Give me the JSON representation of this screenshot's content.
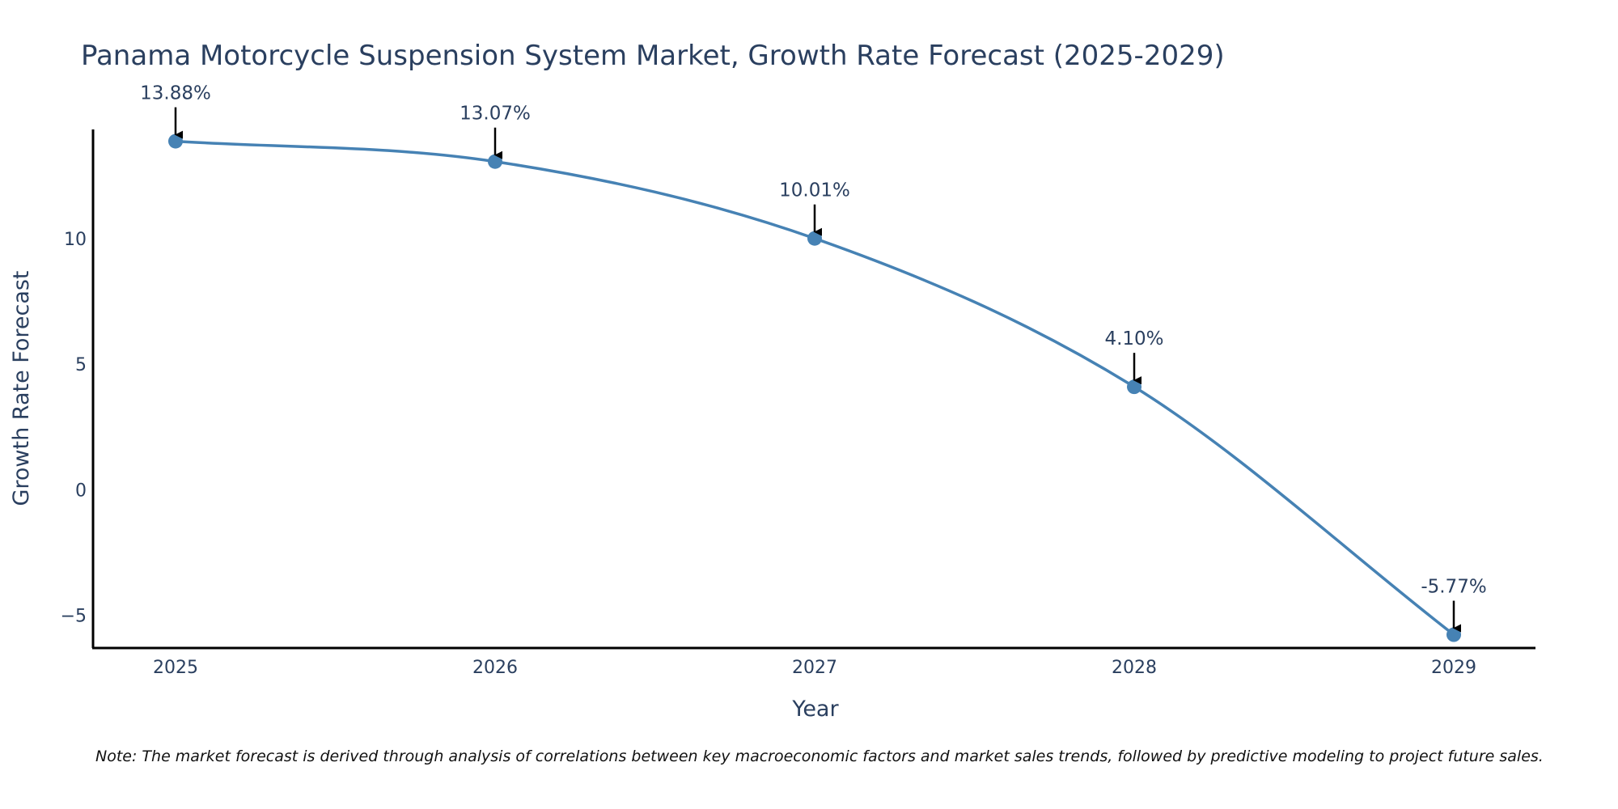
{
  "chart_data": {
    "type": "line",
    "title": "Panama Motorcycle Suspension System Market, Growth Rate Forecast (2025-2029)",
    "xlabel": "Year",
    "ylabel": "Growth Rate Forecast",
    "categories": [
      "2025",
      "2026",
      "2027",
      "2028",
      "2029"
    ],
    "series": [
      {
        "name": "Growth Rate Forecast",
        "values": [
          13.88,
          13.07,
          10.01,
          4.1,
          -5.77
        ],
        "labels": [
          "13.88%",
          "13.07%",
          "10.01%",
          "4.10%",
          "-5.77%"
        ]
      }
    ],
    "y_ticks": [
      -5,
      0,
      5,
      10
    ],
    "y_tick_labels": [
      "−5",
      "0",
      "5",
      "10"
    ],
    "ylim": [
      -6.3,
      14.35
    ],
    "grid": false,
    "line_color": "#4682b4",
    "arrow_color": "#000000",
    "note": "Note: The market forecast is derived through analysis of correlations between key macroeconomic factors and market sales trends, followed by predictive modeling to project future sales."
  }
}
